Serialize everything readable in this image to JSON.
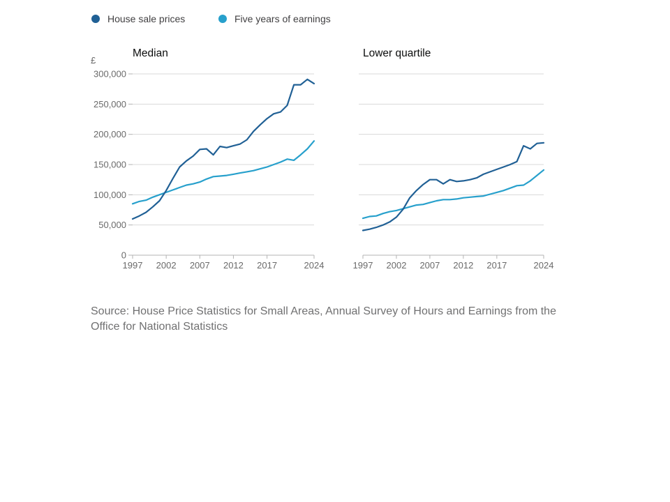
{
  "colors": {
    "house_sale_prices": "#206095",
    "five_years_earnings": "#27a0cc"
  },
  "legend": [
    {
      "label": "House sale prices",
      "color": "#206095"
    },
    {
      "label": "Five years of earnings",
      "color": "#27a0cc"
    }
  ],
  "source_text": "Source: House Price Statistics for Small Areas, Annual Survey of Hours and Earnings from the Office for National Statistics",
  "chart_data": [
    {
      "type": "line",
      "title": "Median",
      "ylabel": "£",
      "ylim": [
        0,
        300000
      ],
      "yticks": [
        0,
        50000,
        100000,
        150000,
        200000,
        250000,
        300000
      ],
      "ytick_labels": [
        "0",
        "50,000",
        "100,000",
        "150,000",
        "200,000",
        "250,000",
        "300,000"
      ],
      "xlim": [
        1997,
        2024
      ],
      "xticks": [
        1997,
        2002,
        2007,
        2012,
        2017,
        2024
      ],
      "xtick_labels": [
        "1997",
        "2002",
        "2007",
        "2012",
        "2017",
        "2024"
      ],
      "grid": true,
      "x": [
        1997,
        1998,
        1999,
        2000,
        2001,
        2002,
        2003,
        2004,
        2005,
        2006,
        2007,
        2008,
        2009,
        2010,
        2011,
        2012,
        2013,
        2014,
        2015,
        2016,
        2017,
        2018,
        2019,
        2020,
        2021,
        2022,
        2023,
        2024
      ],
      "series": [
        {
          "name": "House sale prices",
          "values": [
            60000,
            65000,
            71000,
            80000,
            90000,
            107000,
            127000,
            146000,
            156000,
            164000,
            175000,
            176000,
            166000,
            180000,
            178000,
            181000,
            184000,
            191000,
            205000,
            216000,
            226000,
            234000,
            237000,
            248000,
            282000,
            282000,
            291000,
            284000
          ]
        },
        {
          "name": "Five years of earnings",
          "values": [
            85000,
            89000,
            91000,
            96000,
            100000,
            104000,
            108000,
            112000,
            116000,
            118000,
            121000,
            126000,
            130000,
            131000,
            132000,
            134000,
            136000,
            138000,
            140000,
            143000,
            146000,
            150000,
            154000,
            159000,
            157000,
            166000,
            176000,
            189000
          ]
        }
      ]
    },
    {
      "type": "line",
      "title": "Lower quartile",
      "ylim": [
        0,
        300000
      ],
      "yticks": [
        0,
        50000,
        100000,
        150000,
        200000,
        250000,
        300000
      ],
      "xlim": [
        1997,
        2024
      ],
      "xticks": [
        1997,
        2002,
        2007,
        2012,
        2017,
        2024
      ],
      "xtick_labels": [
        "1997",
        "2002",
        "2007",
        "2012",
        "2017",
        "2024"
      ],
      "grid": true,
      "x": [
        1997,
        1998,
        1999,
        2000,
        2001,
        2002,
        2003,
        2004,
        2005,
        2006,
        2007,
        2008,
        2009,
        2010,
        2011,
        2012,
        2013,
        2014,
        2015,
        2016,
        2017,
        2018,
        2019,
        2020,
        2021,
        2022,
        2023,
        2024
      ],
      "series": [
        {
          "name": "House sale prices",
          "values": [
            41000,
            43000,
            46000,
            50000,
            55000,
            63000,
            76000,
            95000,
            107000,
            117000,
            125000,
            125000,
            118000,
            125000,
            122000,
            123000,
            125000,
            128000,
            134000,
            138000,
            142000,
            146000,
            150000,
            155000,
            181000,
            176000,
            185000,
            186000
          ]
        },
        {
          "name": "Five years of earnings",
          "values": [
            61000,
            64000,
            65000,
            69000,
            72000,
            74000,
            77000,
            80000,
            83000,
            84000,
            87000,
            90000,
            92000,
            92000,
            93000,
            95000,
            96000,
            97000,
            98000,
            101000,
            104000,
            107000,
            111000,
            115000,
            116000,
            123000,
            132000,
            141000
          ]
        }
      ]
    }
  ]
}
